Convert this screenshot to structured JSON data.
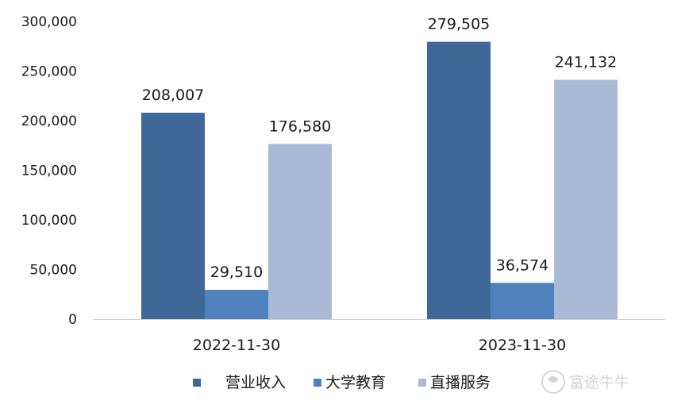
{
  "chart_data": {
    "type": "bar",
    "categories": [
      "2022-11-30",
      "2023-11-30"
    ],
    "series": [
      {
        "name": "营业收入",
        "values": [
          208007,
          279505
        ],
        "color": "#3f6797"
      },
      {
        "name": "大学教育",
        "values": [
          29510,
          36574
        ],
        "color": "#4f81bd"
      },
      {
        "name": "直播服务",
        "values": [
          176580,
          241132
        ],
        "color": "#a9bad6"
      }
    ],
    "data_labels": [
      [
        "208,007",
        "279,505"
      ],
      [
        "29,510",
        "36,574"
      ],
      [
        "176,580",
        "241,132"
      ]
    ],
    "y_ticks": [
      "0",
      "50,000",
      "100,000",
      "150,000",
      "200,000",
      "250,000",
      "300,000"
    ],
    "ylim": [
      0,
      300000
    ],
    "grid": false,
    "legend": "bottom-center"
  },
  "watermark": {
    "text": "富途牛牛",
    "icon": "futu-logo-icon"
  }
}
